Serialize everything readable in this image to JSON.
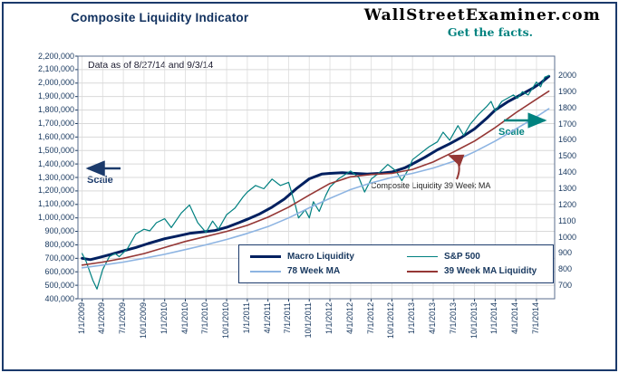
{
  "header": {
    "title": "Composite Liquidity Indicator",
    "brand": "WallStreetExaminer.com",
    "tagline": "Get the facts."
  },
  "annotations": {
    "data_as_of": "Data as of 8/27/14 and 9/3/14",
    "left_scale": "Scale",
    "right_scale": "Scale",
    "ma_callout": "Composite Liquidity 39 Week MA"
  },
  "colors": {
    "frame": "#1b3a6b",
    "axis_text": "#17375e",
    "grid": "#d9d9d9",
    "macro_liquidity": "#002060",
    "sp500": "#008080",
    "ma78": "#8db4e2",
    "ma39": "#953735"
  },
  "legend": [
    {
      "label": "Macro Liquidity",
      "color": "#002060",
      "width": 3.5
    },
    {
      "label": "S&P 500",
      "color": "#008080",
      "width": 1.5
    },
    {
      "label": "78 Week MA",
      "color": "#8db4e2",
      "width": 2
    },
    {
      "label": "39 Week MA Liquidity",
      "color": "#953735",
      "width": 2
    }
  ],
  "chart_data": {
    "type": "line",
    "title": "Composite Liquidity Indicator",
    "grid": true,
    "legend_position": "bottom-inside",
    "x_axis": {
      "range": [
        2008.95,
        2014.72
      ],
      "tick_values": [
        2009,
        2009.25,
        2009.5,
        2009.75,
        2010,
        2010.25,
        2010.5,
        2010.75,
        2011,
        2011.25,
        2011.5,
        2011.75,
        2012,
        2012.25,
        2012.5,
        2012.75,
        2013,
        2013.25,
        2013.5,
        2013.75,
        2014,
        2014.25,
        2014.5
      ],
      "tick_labels": [
        "1/1/2009",
        "4/1/2009",
        "7/1/2009",
        "10/1/2009",
        "1/1/2010",
        "4/1/2010",
        "7/1/2010",
        "10/1/2010",
        "1/1/2011",
        "4/1/2011",
        "7/1/2011",
        "10/1/2011",
        "1/1/2012",
        "4/1/2012",
        "7/1/2012",
        "10/1/2012",
        "1/1/2013",
        "4/1/2013",
        "7/1/2013",
        "10/1/2013",
        "1/1/2014",
        "4/1/2014",
        "7/1/2014"
      ]
    },
    "left_axis": {
      "range": [
        400000,
        2200000
      ],
      "tick_values": [
        400000,
        500000,
        600000,
        700000,
        800000,
        900000,
        1000000,
        1100000,
        1200000,
        1300000,
        1400000,
        1500000,
        1600000,
        1700000,
        1800000,
        1900000,
        2000000,
        2100000,
        2200000
      ],
      "tick_labels": [
        "400,000",
        "500,000",
        "600,000",
        "700,000",
        "800,000",
        "900,000",
        "1,000,000",
        "1,100,000",
        "1,200,000",
        "1,300,000",
        "1,400,000",
        "1,500,000",
        "1,600,000",
        "1,700,000",
        "1,800,000",
        "1,900,000",
        "2,000,000",
        "2,100,000",
        "2,200,000"
      ]
    },
    "right_axis": {
      "range": [
        620,
        2120
      ],
      "tick_values": [
        700,
        800,
        900,
        1000,
        1100,
        1200,
        1300,
        1400,
        1500,
        1600,
        1700,
        1800,
        1900,
        2000
      ],
      "tick_labels": [
        "700",
        "800",
        "900",
        "1000",
        "1100",
        "1200",
        "1300",
        "1400",
        "1500",
        "1600",
        "1700",
        "1800",
        "1900",
        "2000"
      ]
    },
    "series": [
      {
        "name": "Macro Liquidity",
        "slug": "macro-liquidity",
        "axis": "left",
        "color": "#002060",
        "width": 3,
        "x": [
          2009.0,
          2009.1,
          2009.2,
          2009.35,
          2009.5,
          2009.65,
          2009.8,
          2010.0,
          2010.15,
          2010.3,
          2010.45,
          2010.6,
          2010.75,
          2010.9,
          2011.0,
          2011.15,
          2011.3,
          2011.45,
          2011.6,
          2011.75,
          2011.9,
          2012.0,
          2012.15,
          2012.3,
          2012.45,
          2012.6,
          2012.75,
          2012.9,
          2013.0,
          2013.15,
          2013.3,
          2013.45,
          2013.6,
          2013.75,
          2013.9,
          2014.0,
          2014.15,
          2014.3,
          2014.45,
          2014.55,
          2014.65
        ],
        "values": [
          700000,
          690000,
          705000,
          730000,
          755000,
          780000,
          810000,
          845000,
          865000,
          885000,
          895000,
          905000,
          930000,
          965000,
          990000,
          1030000,
          1080000,
          1140000,
          1220000,
          1290000,
          1325000,
          1330000,
          1335000,
          1330000,
          1325000,
          1330000,
          1340000,
          1370000,
          1400000,
          1450000,
          1505000,
          1550000,
          1600000,
          1660000,
          1740000,
          1800000,
          1860000,
          1910000,
          1960000,
          2000000,
          2050000
        ]
      },
      {
        "name": "S&P 500",
        "slug": "sp-500",
        "axis": "right",
        "color": "#008080",
        "width": 1.2,
        "x": [
          2009.0,
          2009.05,
          2009.13,
          2009.18,
          2009.25,
          2009.33,
          2009.4,
          2009.45,
          2009.55,
          2009.65,
          2009.75,
          2009.82,
          2009.9,
          2010.0,
          2010.08,
          2010.2,
          2010.3,
          2010.4,
          2010.5,
          2010.58,
          2010.65,
          2010.75,
          2010.85,
          2010.95,
          2011.0,
          2011.1,
          2011.2,
          2011.3,
          2011.4,
          2011.5,
          2011.58,
          2011.62,
          2011.7,
          2011.75,
          2011.8,
          2011.87,
          2011.95,
          2012.0,
          2012.1,
          2012.25,
          2012.35,
          2012.42,
          2012.5,
          2012.6,
          2012.7,
          2012.8,
          2012.87,
          2012.95,
          2013.0,
          2013.1,
          2013.2,
          2013.3,
          2013.37,
          2013.45,
          2013.55,
          2013.62,
          2013.7,
          2013.8,
          2013.9,
          2013.95,
          2014.0,
          2014.08,
          2014.15,
          2014.22,
          2014.27,
          2014.33,
          2014.4,
          2014.45,
          2014.5,
          2014.55,
          2014.6,
          2014.65
        ],
        "values": [
          900,
          850,
          735,
          680,
          800,
          880,
          900,
          880,
          930,
          1020,
          1050,
          1040,
          1090,
          1115,
          1060,
          1150,
          1200,
          1090,
          1030,
          1100,
          1050,
          1140,
          1180,
          1250,
          1280,
          1320,
          1300,
          1360,
          1320,
          1340,
          1200,
          1120,
          1170,
          1120,
          1220,
          1160,
          1260,
          1310,
          1360,
          1410,
          1370,
          1280,
          1360,
          1400,
          1450,
          1410,
          1350,
          1420,
          1480,
          1520,
          1560,
          1590,
          1650,
          1600,
          1690,
          1630,
          1700,
          1760,
          1810,
          1840,
          1780,
          1840,
          1860,
          1880,
          1860,
          1900,
          1880,
          1920,
          1960,
          1930,
          1990,
          2000
        ]
      },
      {
        "name": "78 Week MA",
        "slug": "78-week-ma",
        "axis": "left",
        "color": "#8db4e2",
        "width": 1.6,
        "x": [
          2009.0,
          2009.25,
          2009.5,
          2009.75,
          2010.0,
          2010.25,
          2010.5,
          2010.75,
          2011.0,
          2011.25,
          2011.5,
          2011.75,
          2012.0,
          2012.25,
          2012.5,
          2012.75,
          2013.0,
          2013.25,
          2013.5,
          2013.75,
          2014.0,
          2014.25,
          2014.5,
          2014.65
        ],
        "values": [
          630000,
          650000,
          672000,
          700000,
          730000,
          765000,
          800000,
          840000,
          885000,
          935000,
          1000000,
          1075000,
          1145000,
          1210000,
          1260000,
          1300000,
          1330000,
          1370000,
          1420000,
          1490000,
          1570000,
          1660000,
          1750000,
          1810000
        ]
      },
      {
        "name": "39 Week MA Liquidity",
        "slug": "39-week-ma-liquidity",
        "axis": "left",
        "color": "#953735",
        "width": 1.6,
        "x": [
          2009.0,
          2009.25,
          2009.5,
          2009.75,
          2010.0,
          2010.25,
          2010.5,
          2010.75,
          2011.0,
          2011.25,
          2011.5,
          2011.75,
          2012.0,
          2012.25,
          2012.5,
          2012.75,
          2013.0,
          2013.25,
          2013.5,
          2013.75,
          2014.0,
          2014.25,
          2014.5,
          2014.65
        ],
        "values": [
          650000,
          672000,
          700000,
          735000,
          780000,
          825000,
          862000,
          900000,
          945000,
          1005000,
          1080000,
          1170000,
          1255000,
          1305000,
          1322000,
          1330000,
          1360000,
          1415000,
          1490000,
          1570000,
          1670000,
          1780000,
          1880000,
          1940000
        ]
      }
    ]
  }
}
